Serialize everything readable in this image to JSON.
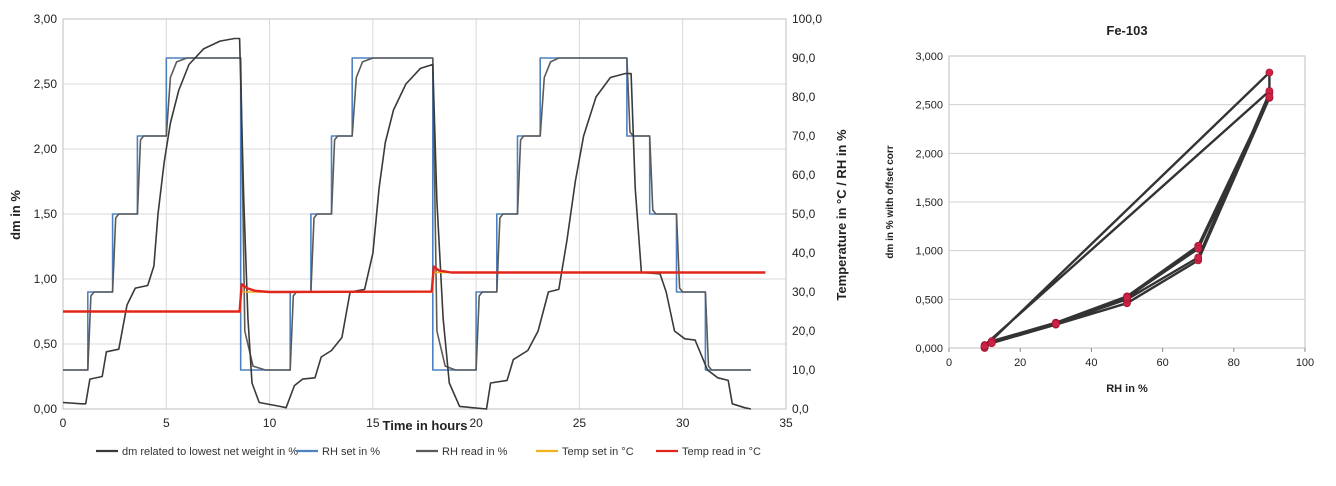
{
  "chart_data": [
    {
      "type": "line",
      "xlabel": "Time in hours",
      "ylabel": "dm in %",
      "y2label": "Temperature in °C / RH in %",
      "xlim": [
        0,
        35
      ],
      "ylim": [
        0,
        3
      ],
      "y2lim": [
        0,
        100
      ],
      "grid": true,
      "legend_position": "bottom",
      "x_ticks": [
        "0",
        "5",
        "10",
        "15",
        "20",
        "25",
        "30",
        "35"
      ],
      "y_ticks": [
        "0,00",
        "0,50",
        "1,00",
        "1,50",
        "2,00",
        "2,50",
        "3,00"
      ],
      "y2_ticks": [
        "0,0",
        "10,0",
        "20,0",
        "30,0",
        "40,0",
        "50,0",
        "60,0",
        "70,0",
        "80,0",
        "90,0",
        "100,0"
      ],
      "series": [
        {
          "name": "dm  related to lowest net weight in   %",
          "axis": "left",
          "color": "#3a3a3a",
          "points": [
            [
              0,
              0.05
            ],
            [
              0.9,
              0.04
            ],
            [
              1.1,
              0.04
            ],
            [
              1.3,
              0.23
            ],
            [
              1.9,
              0.25
            ],
            [
              2.1,
              0.44
            ],
            [
              2.7,
              0.46
            ],
            [
              3.1,
              0.8
            ],
            [
              3.5,
              0.93
            ],
            [
              4.1,
              0.95
            ],
            [
              4.4,
              1.1
            ],
            [
              4.6,
              1.5
            ],
            [
              4.9,
              1.9
            ],
            [
              5.2,
              2.2
            ],
            [
              5.6,
              2.45
            ],
            [
              6.1,
              2.65
            ],
            [
              6.8,
              2.77
            ],
            [
              7.6,
              2.83
            ],
            [
              8.3,
              2.85
            ],
            [
              8.55,
              2.85
            ],
            [
              8.75,
              1.6
            ],
            [
              8.95,
              0.7
            ],
            [
              9.15,
              0.2
            ],
            [
              9.5,
              0.05
            ],
            [
              10.5,
              0.02
            ],
            [
              10.8,
              0.01
            ],
            [
              11.2,
              0.18
            ],
            [
              11.6,
              0.23
            ],
            [
              12.2,
              0.24
            ],
            [
              12.5,
              0.4
            ],
            [
              13.0,
              0.45
            ],
            [
              13.5,
              0.55
            ],
            [
              13.9,
              0.9
            ],
            [
              14.6,
              0.92
            ],
            [
              15.0,
              1.2
            ],
            [
              15.3,
              1.7
            ],
            [
              15.6,
              2.05
            ],
            [
              16.0,
              2.3
            ],
            [
              16.6,
              2.5
            ],
            [
              17.3,
              2.62
            ],
            [
              17.9,
              2.65
            ],
            [
              18.1,
              1.6
            ],
            [
              18.4,
              0.7
            ],
            [
              18.7,
              0.2
            ],
            [
              19.2,
              0.02
            ],
            [
              20.5,
              0.0
            ],
            [
              20.7,
              0.2
            ],
            [
              21.5,
              0.22
            ],
            [
              21.8,
              0.38
            ],
            [
              22.5,
              0.45
            ],
            [
              23.0,
              0.6
            ],
            [
              23.5,
              0.9
            ],
            [
              24.0,
              0.92
            ],
            [
              24.4,
              1.3
            ],
            [
              24.8,
              1.75
            ],
            [
              25.2,
              2.1
            ],
            [
              25.8,
              2.4
            ],
            [
              26.5,
              2.55
            ],
            [
              27.2,
              2.58
            ],
            [
              27.5,
              2.58
            ],
            [
              27.7,
              1.7
            ],
            [
              28.0,
              1.05
            ],
            [
              28.9,
              1.04
            ],
            [
              29.2,
              0.9
            ],
            [
              29.6,
              0.6
            ],
            [
              30.1,
              0.54
            ],
            [
              30.6,
              0.53
            ],
            [
              31.2,
              0.3
            ],
            [
              31.7,
              0.24
            ],
            [
              32.2,
              0.22
            ],
            [
              32.4,
              0.04
            ],
            [
              33.0,
              0.01
            ],
            [
              33.3,
              0.0
            ]
          ]
        },
        {
          "name": "RH set in %",
          "axis": "right",
          "color": "#4f81bd",
          "points": [
            [
              0,
              10
            ],
            [
              1.2,
              10
            ],
            [
              1.2,
              30
            ],
            [
              2.4,
              30
            ],
            [
              2.4,
              50
            ],
            [
              3.6,
              50
            ],
            [
              3.6,
              70
            ],
            [
              5.0,
              70
            ],
            [
              5.0,
              90
            ],
            [
              8.6,
              90
            ],
            [
              8.6,
              10
            ],
            [
              11.0,
              10
            ],
            [
              11.0,
              30
            ],
            [
              12.0,
              30
            ],
            [
              12.0,
              50
            ],
            [
              13.0,
              50
            ],
            [
              13.0,
              70
            ],
            [
              14.0,
              70
            ],
            [
              14.0,
              90
            ],
            [
              17.9,
              90
            ],
            [
              17.9,
              10
            ],
            [
              20.0,
              10
            ],
            [
              20.0,
              30
            ],
            [
              21.0,
              30
            ],
            [
              21.0,
              50
            ],
            [
              22.0,
              50
            ],
            [
              22.0,
              70
            ],
            [
              23.1,
              70
            ],
            [
              23.1,
              90
            ],
            [
              27.3,
              90
            ],
            [
              27.3,
              70
            ],
            [
              28.4,
              70
            ],
            [
              28.4,
              50
            ],
            [
              29.7,
              50
            ],
            [
              29.7,
              30
            ],
            [
              31.1,
              30
            ],
            [
              31.1,
              10
            ],
            [
              33.3,
              10
            ]
          ]
        },
        {
          "name": "RH read in %",
          "axis": "right",
          "color": "#5a5a5a",
          "points": [
            [
              0,
              10
            ],
            [
              1.2,
              10
            ],
            [
              1.35,
              29
            ],
            [
              1.5,
              30
            ],
            [
              2.4,
              30
            ],
            [
              2.55,
              49
            ],
            [
              2.7,
              50
            ],
            [
              3.6,
              50
            ],
            [
              3.75,
              69
            ],
            [
              3.9,
              70
            ],
            [
              5.0,
              70
            ],
            [
              5.2,
              85
            ],
            [
              5.5,
              89
            ],
            [
              6.0,
              90
            ],
            [
              8.6,
              90
            ],
            [
              8.8,
              20
            ],
            [
              9.2,
              11
            ],
            [
              9.8,
              10
            ],
            [
              11.0,
              10
            ],
            [
              11.15,
              29
            ],
            [
              11.3,
              30
            ],
            [
              12.0,
              30
            ],
            [
              12.15,
              49
            ],
            [
              12.3,
              50
            ],
            [
              13.0,
              50
            ],
            [
              13.15,
              69
            ],
            [
              13.3,
              70
            ],
            [
              14.0,
              70
            ],
            [
              14.2,
              85
            ],
            [
              14.5,
              89
            ],
            [
              15.0,
              90
            ],
            [
              17.9,
              90
            ],
            [
              18.1,
              20
            ],
            [
              18.5,
              11
            ],
            [
              19.0,
              10
            ],
            [
              20.0,
              10
            ],
            [
              20.15,
              29
            ],
            [
              20.3,
              30
            ],
            [
              21.0,
              30
            ],
            [
              21.15,
              49
            ],
            [
              21.3,
              50
            ],
            [
              22.0,
              50
            ],
            [
              22.15,
              69
            ],
            [
              22.3,
              70
            ],
            [
              23.1,
              70
            ],
            [
              23.3,
              85
            ],
            [
              23.6,
              89
            ],
            [
              24.0,
              90
            ],
            [
              27.3,
              90
            ],
            [
              27.45,
              71
            ],
            [
              27.6,
              70
            ],
            [
              28.4,
              70
            ],
            [
              28.55,
              51
            ],
            [
              28.7,
              50
            ],
            [
              29.7,
              50
            ],
            [
              29.85,
              31
            ],
            [
              30.0,
              30
            ],
            [
              31.1,
              30
            ],
            [
              31.25,
              11
            ],
            [
              31.4,
              10
            ],
            [
              33.3,
              10
            ]
          ]
        },
        {
          "name": "Temp set in °C",
          "axis": "right",
          "color": "#f2b01e",
          "points": [
            [
              0,
              25
            ],
            [
              8.6,
              25
            ],
            [
              8.6,
              30
            ],
            [
              17.9,
              30
            ],
            [
              17.9,
              35
            ],
            [
              34,
              35
            ]
          ]
        },
        {
          "name": "Temp read in °C",
          "axis": "right",
          "color": "#e0261b",
          "points": [
            [
              0,
              25
            ],
            [
              8.55,
              25
            ],
            [
              8.65,
              32
            ],
            [
              8.9,
              31
            ],
            [
              9.3,
              30.3
            ],
            [
              10,
              30
            ],
            [
              17.85,
              30.1
            ],
            [
              17.95,
              36.5
            ],
            [
              18.2,
              35.5
            ],
            [
              18.8,
              35
            ],
            [
              34,
              35
            ]
          ]
        }
      ]
    },
    {
      "type": "scatter",
      "title": "Fe-103",
      "xlabel": "RH in %",
      "ylabel": "dm in % with offset corr",
      "xlim": [
        0,
        100
      ],
      "ylim": [
        0,
        3
      ],
      "grid": true,
      "x_ticks": [
        "0",
        "20",
        "40",
        "60",
        "80",
        "100"
      ],
      "y_ticks": [
        "0,000",
        "0,500",
        "1,000",
        "1,500",
        "2,000",
        "2,500",
        "3,000"
      ],
      "series": [
        {
          "marker_color": "#cc2244",
          "line_color": "#333333",
          "points": [
            [
              10,
              0.0
            ],
            [
              12,
              0.05
            ],
            [
              30,
              0.24
            ],
            [
              50,
              0.46
            ],
            [
              70,
              0.9
            ],
            [
              90,
              2.57
            ],
            [
              90,
              2.83
            ],
            [
              10,
              0.01
            ],
            [
              12,
              0.06
            ],
            [
              30,
              0.25
            ],
            [
              50,
              0.5
            ],
            [
              70,
              0.93
            ],
            [
              90,
              2.62
            ],
            [
              90,
              2.64
            ],
            [
              10,
              0.03
            ],
            [
              12,
              0.07
            ],
            [
              30,
              0.26
            ],
            [
              50,
              0.53
            ],
            [
              70,
              1.05
            ],
            [
              90,
              2.58
            ],
            [
              70,
              1.02
            ],
            [
              50,
              0.52
            ],
            [
              30,
              0.25
            ],
            [
              12,
              0.05
            ],
            [
              10,
              0.02
            ]
          ]
        }
      ]
    }
  ]
}
